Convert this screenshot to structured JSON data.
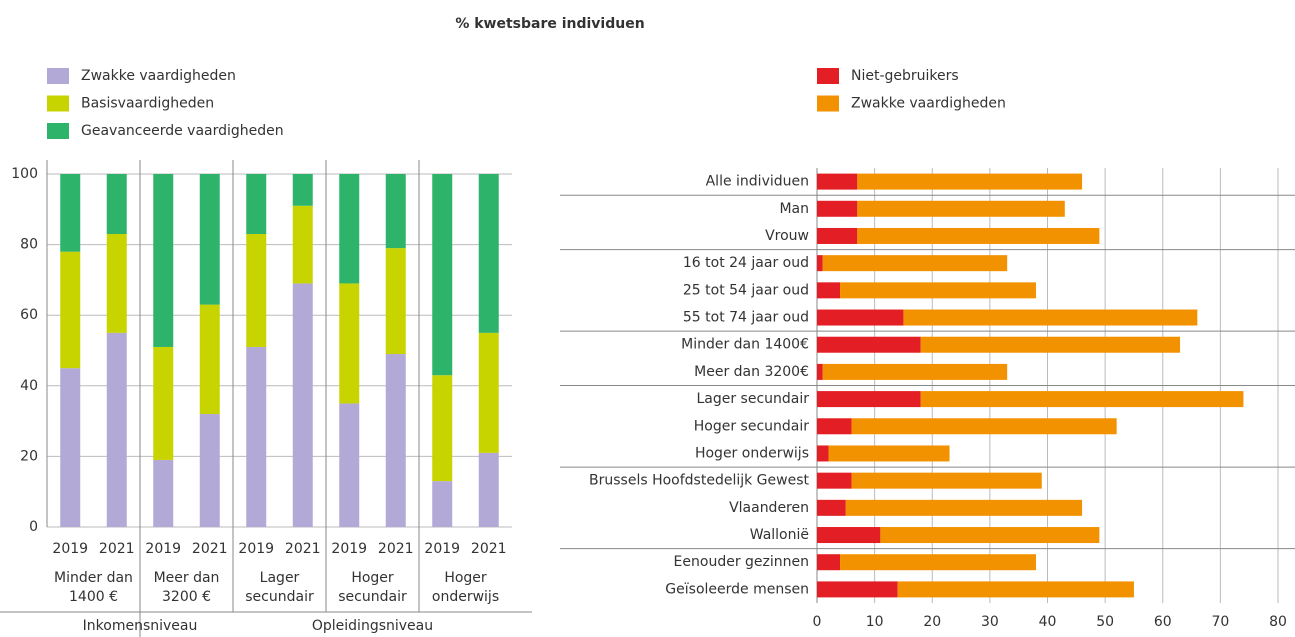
{
  "title": "% kwetsbare individuen",
  "chart_data": [
    {
      "type": "stacked_bar",
      "categories": [
        "2019",
        "2021",
        "2019",
        "2021",
        "2019",
        "2021",
        "2019",
        "2021",
        "2019",
        "2021"
      ],
      "groups": [
        [
          "Minder dan",
          "1400 €"
        ],
        [
          "Meer dan",
          "3200 €"
        ],
        [
          "Lager",
          "secundair"
        ],
        [
          "Hoger",
          "secundair"
        ],
        [
          "Hoger",
          "onderwijs"
        ]
      ],
      "supergroups": [
        "Inkomensniveau",
        "Opleidingsniveau"
      ],
      "series": [
        {
          "name": "Zwakke vaardigheden",
          "color": "#b3a9d6",
          "values": [
            45,
            55,
            19,
            32,
            51,
            69,
            35,
            49,
            13,
            21
          ]
        },
        {
          "name": "Basisvaardigheden",
          "color": "#c8d400",
          "values": [
            33,
            28,
            32,
            31,
            32,
            22,
            34,
            30,
            30,
            34
          ]
        },
        {
          "name": "Geavanceerde vaardigheden",
          "color": "#2db36a",
          "values": [
            22,
            17,
            49,
            37,
            17,
            9,
            31,
            21,
            57,
            45
          ]
        }
      ],
      "ylim": [
        0,
        100
      ],
      "yticks": [
        0,
        20,
        40,
        60,
        80,
        100
      ],
      "grid": true
    },
    {
      "type": "stacked_hbar",
      "categories": [
        "Alle individuen",
        "Man",
        "Vrouw",
        "16 tot 24 jaar oud",
        "25 tot 54 jaar oud",
        "55 tot 74 jaar oud",
        "Minder dan 1400€",
        "Meer dan 3200€",
        "Lager secundair",
        "Hoger secundair",
        "Hoger onderwijs",
        "Brussels Hoofdstedelijk Gewest",
        "Vlaanderen",
        "Wallonië",
        "Eenouder gezinnen",
        "Geïsoleerde mensen"
      ],
      "series": [
        {
          "name": "Niet-gebruikers",
          "color": "#e31e24",
          "values": [
            7,
            7,
            7,
            1,
            4,
            15,
            18,
            1,
            18,
            6,
            2,
            6,
            5,
            11,
            4,
            14
          ]
        },
        {
          "name": "Zwakke vaardigheden",
          "color": "#f39200",
          "values": [
            39,
            36,
            42,
            32,
            34,
            51,
            45,
            32,
            56,
            46,
            21,
            33,
            41,
            38,
            34,
            41
          ]
        }
      ],
      "xlim": [
        0,
        80
      ],
      "xticks": [
        0,
        10,
        20,
        30,
        40,
        50,
        60,
        70,
        80
      ],
      "grid": true
    }
  ]
}
